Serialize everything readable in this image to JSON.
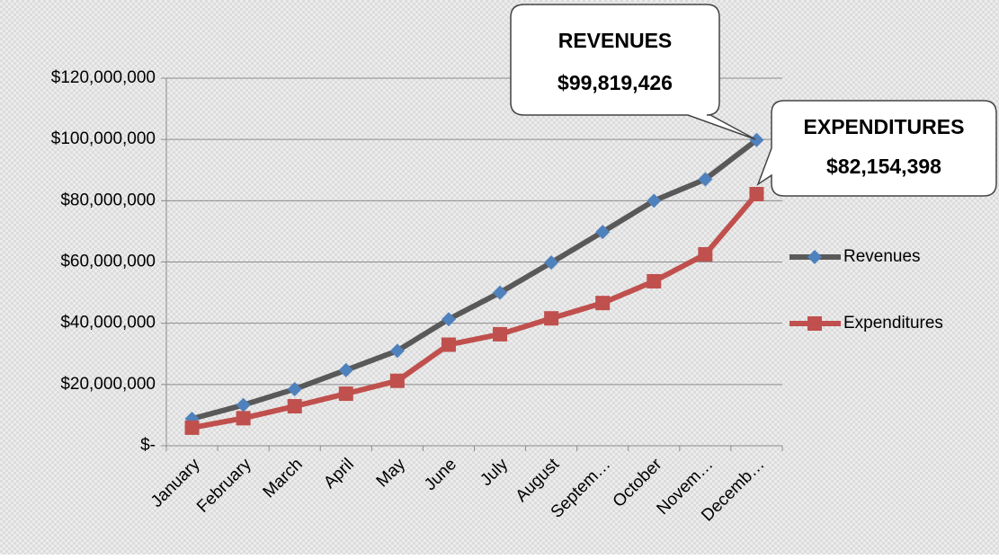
{
  "chart_data": {
    "type": "line",
    "categories": [
      "January",
      "February",
      "March",
      "April",
      "May",
      "June",
      "July",
      "August",
      "Septem…",
      "October",
      "Novem…",
      "Decemb…"
    ],
    "series": [
      {
        "name": "Revenues",
        "color": "#595959",
        "marker": "diamond",
        "marker_color": "#4f81bd",
        "values": [
          8800000,
          13300000,
          18500000,
          24700000,
          31000000,
          41300000,
          50000000,
          59800000,
          69800000,
          80000000,
          87000000,
          99819426
        ]
      },
      {
        "name": "Expenditures",
        "color": "#c0504d",
        "marker": "square",
        "marker_color": "#c0504d",
        "values": [
          5900000,
          9000000,
          12900000,
          17000000,
          21200000,
          33000000,
          36400000,
          41600000,
          46600000,
          53700000,
          62500000,
          82154398
        ]
      }
    ],
    "ylim": [
      0,
      120000000
    ],
    "yticks": [
      {
        "value": 0,
        "label": "$-"
      },
      {
        "value": 20000000,
        "label": "$20,000,000"
      },
      {
        "value": 40000000,
        "label": "$40,000,000"
      },
      {
        "value": 60000000,
        "label": "$60,000,000"
      },
      {
        "value": 80000000,
        "label": "$80,000,000"
      },
      {
        "value": 100000000,
        "label": "$100,000,000"
      },
      {
        "value": 120000000,
        "label": "$120,000,000"
      }
    ],
    "grid": true,
    "legend": "right",
    "annotations": [
      {
        "title": "REVENUES",
        "label": "$99,819,426"
      },
      {
        "title": "EXPENDITURES",
        "label": "$82,154,398"
      }
    ]
  }
}
